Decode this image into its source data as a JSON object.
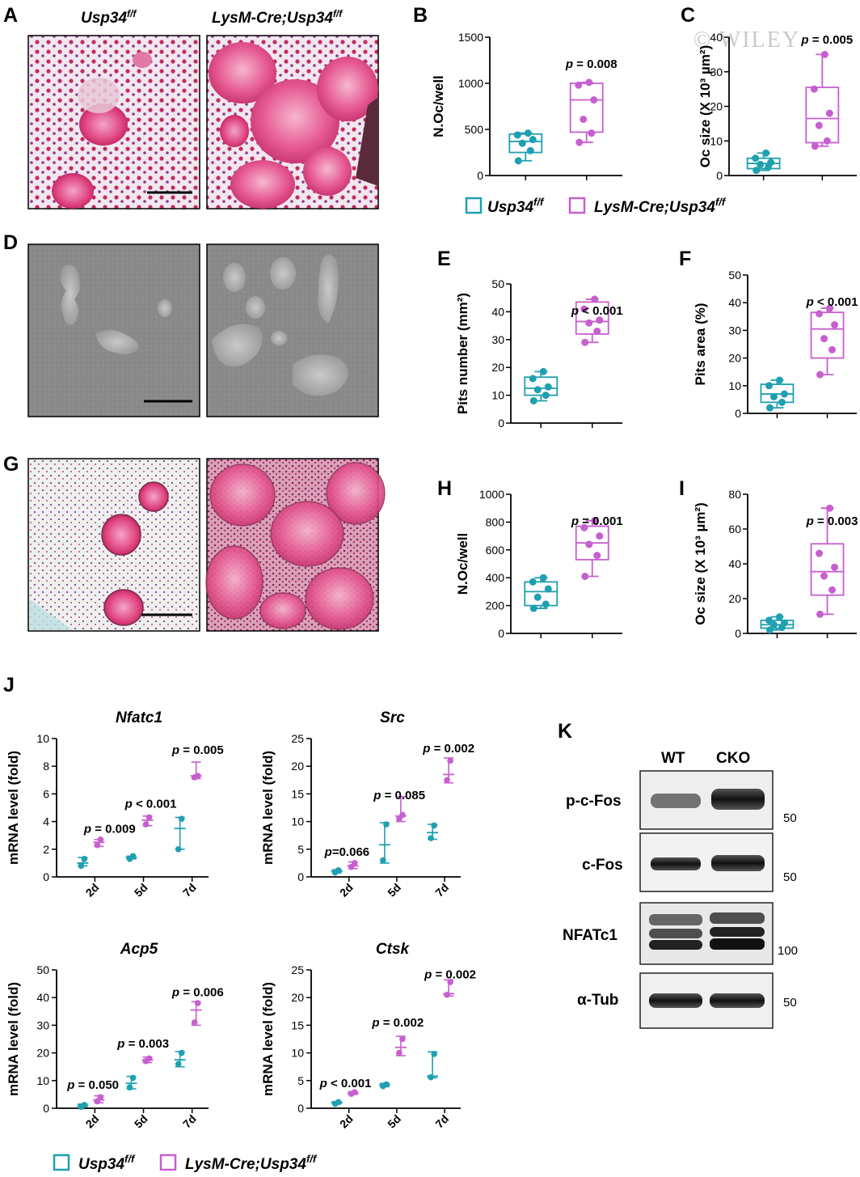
{
  "figure": {
    "panel_letters": [
      "A",
      "B",
      "C",
      "D",
      "E",
      "F",
      "G",
      "H",
      "I",
      "J",
      "K"
    ],
    "watermark": "© WILEY",
    "colors": {
      "wt": "#1fa0b0",
      "cko": "#c75fd0"
    },
    "legend_top": {
      "wt": "Usp34",
      "wt_sup": "f/f",
      "cko": "LysM-Cre;Usp34",
      "cko_sup": "f/f"
    },
    "legend_bottom": {
      "wt": "Usp34",
      "wt_sup": "f/f",
      "cko": "LysM-Cre;Usp34",
      "cko_sup": "f/f"
    },
    "image_panel_A": {
      "left_title": "Usp34",
      "left_title_sup": "f/f",
      "right_title": "LysM-Cre;Usp34",
      "right_title_sup": "f/f"
    }
  },
  "western_blot": {
    "lanes": [
      "WT",
      "CKO"
    ],
    "rows": [
      {
        "label": "p-c-Fos",
        "marker": "50"
      },
      {
        "label": "c-Fos",
        "marker": "50"
      },
      {
        "label": "NFATc1",
        "marker": "100"
      },
      {
        "label": "α-Tub",
        "marker": "50"
      }
    ]
  },
  "chart_data": [
    {
      "id": "B",
      "type": "box",
      "ylabel": "N.Oc/well",
      "ylim": [
        0,
        1500
      ],
      "yticks": [
        0,
        500,
        1000,
        1500
      ],
      "pvalue": "p = 0.008",
      "groups": [
        {
          "name": "Usp34 f/f",
          "min": 160,
          "q1": 250,
          "median": 370,
          "q3": 450,
          "max": 460,
          "points": [
            160,
            270,
            350,
            390,
            440,
            460
          ]
        },
        {
          "name": "LysM-Cre;Usp34 f/f",
          "min": 360,
          "q1": 470,
          "median": 820,
          "q3": 1000,
          "max": 1010,
          "points": [
            360,
            460,
            610,
            820,
            980,
            1010
          ]
        }
      ]
    },
    {
      "id": "C",
      "type": "box",
      "ylabel": "Oc size (X 10³ µm²)",
      "ylim": [
        0,
        40
      ],
      "yticks": [
        0,
        10,
        20,
        30,
        40
      ],
      "pvalue": "p = 0.005",
      "groups": [
        {
          "name": "Usp34 f/f",
          "min": 1.5,
          "q1": 2,
          "median": 3.5,
          "q3": 5,
          "max": 6.5,
          "points": [
            1.5,
            2.5,
            3.2,
            3.8,
            5,
            6.5
          ]
        },
        {
          "name": "LysM-Cre;Usp34 f/f",
          "min": 8.5,
          "q1": 9.5,
          "median": 16.5,
          "q3": 25.5,
          "max": 35,
          "points": [
            8.5,
            10,
            14.5,
            18,
            25,
            35
          ]
        }
      ]
    },
    {
      "id": "E",
      "type": "box",
      "ylabel": "Pits number (mm²)",
      "ylim": [
        0,
        50
      ],
      "yticks": [
        0,
        10,
        20,
        30,
        40,
        50
      ],
      "pvalue": "p < 0.001",
      "groups": [
        {
          "name": "Usp34 f/f",
          "min": 8,
          "q1": 10,
          "median": 12.5,
          "q3": 16.5,
          "max": 18.5,
          "points": [
            8,
            10,
            12,
            13,
            16,
            18.5
          ]
        },
        {
          "name": "LysM-Cre;Usp34 f/f",
          "min": 29,
          "q1": 32,
          "median": 36.5,
          "q3": 43.5,
          "max": 44.5,
          "points": [
            29,
            33,
            36,
            37,
            41,
            44.5
          ]
        }
      ]
    },
    {
      "id": "F",
      "type": "box",
      "ylabel": "Pits area (%)",
      "ylim": [
        0,
        50
      ],
      "yticks": [
        0,
        10,
        20,
        30,
        40,
        50
      ],
      "pvalue": "p < 0.001",
      "groups": [
        {
          "name": "Usp34 f/f",
          "min": 2,
          "q1": 4,
          "median": 7,
          "q3": 10.5,
          "max": 12,
          "points": [
            2,
            4,
            6,
            7,
            10,
            12
          ]
        },
        {
          "name": "LysM-Cre;Usp34 f/f",
          "min": 14,
          "q1": 20,
          "median": 30.5,
          "q3": 36.5,
          "max": 38,
          "points": [
            14,
            23,
            27,
            32,
            36,
            38
          ]
        }
      ]
    },
    {
      "id": "H",
      "type": "box",
      "ylabel": "N.Oc/well",
      "ylim": [
        0,
        1000
      ],
      "yticks": [
        0,
        200,
        400,
        600,
        800,
        1000
      ],
      "pvalue": "p = 0.001",
      "groups": [
        {
          "name": "Usp34 f/f",
          "min": 180,
          "q1": 200,
          "median": 300,
          "q3": 370,
          "max": 400,
          "points": [
            180,
            210,
            260,
            320,
            370,
            400
          ]
        },
        {
          "name": "LysM-Cre;Usp34 f/f",
          "min": 410,
          "q1": 530,
          "median": 650,
          "q3": 770,
          "max": 810,
          "points": [
            410,
            560,
            640,
            700,
            760,
            810
          ]
        }
      ]
    },
    {
      "id": "I",
      "type": "box",
      "ylabel": "Oc size (X 10³ µm²)",
      "ylim": [
        0,
        80
      ],
      "yticks": [
        0,
        20,
        40,
        60,
        80
      ],
      "pvalue": "p = 0.003",
      "groups": [
        {
          "name": "Usp34 f/f",
          "min": 2,
          "q1": 3,
          "median": 5,
          "q3": 7.5,
          "max": 9.5,
          "points": [
            2,
            3.5,
            5,
            6,
            7.5,
            9.5
          ]
        },
        {
          "name": "LysM-Cre;Usp34 f/f",
          "min": 11,
          "q1": 22,
          "median": 35.5,
          "q3": 51.5,
          "max": 72,
          "points": [
            11,
            25,
            33,
            38,
            46,
            72
          ]
        }
      ]
    },
    {
      "id": "J-Nfatc1",
      "type": "scatter",
      "title": "Nfatc1",
      "ylabel": "mRNA level (fold)",
      "ylim": [
        0,
        10
      ],
      "yticks": [
        0,
        2,
        4,
        6,
        8,
        10
      ],
      "categories": [
        "2d",
        "5d",
        "7d"
      ],
      "series": [
        {
          "name": "Usp34 f/f",
          "mean": [
            1.0,
            1.4,
            3.5
          ],
          "min": [
            0.8,
            1.3,
            2.0
          ],
          "max": [
            1.4,
            1.5,
            4.3
          ],
          "points": [
            [
              0.8,
              1.3
            ],
            [
              1.3,
              1.5
            ],
            [
              2.0,
              4.2
            ]
          ]
        },
        {
          "name": "LysM-Cre;Usp34 f/f",
          "mean": [
            2.5,
            4.1,
            7.3
          ],
          "min": [
            2.2,
            3.7,
            7.1
          ],
          "max": [
            2.7,
            4.4,
            8.3
          ],
          "points": [
            [
              2.3,
              2.7
            ],
            [
              3.8,
              4.3
            ],
            [
              7.2,
              7.3
            ]
          ]
        }
      ],
      "pvalues": [
        "p = 0.009",
        "p < 0.001",
        "p = 0.005"
      ]
    },
    {
      "id": "J-Src",
      "type": "scatter",
      "title": "Src",
      "ylabel": "mRNA level (fold)",
      "ylim": [
        0,
        25
      ],
      "yticks": [
        0,
        5,
        10,
        15,
        20,
        25
      ],
      "categories": [
        "2d",
        "5d",
        "7d"
      ],
      "series": [
        {
          "name": "Usp34 f/f",
          "mean": [
            1.0,
            5.8,
            8.0
          ],
          "min": [
            0.7,
            2.5,
            6.8
          ],
          "max": [
            1.3,
            9.8,
            9.5
          ],
          "points": [
            [
              0.8,
              1.2
            ],
            [
              3.0,
              9.5
            ],
            [
              7.0,
              9.3
            ]
          ]
        },
        {
          "name": "LysM-Cre;Usp34 f/f",
          "mean": [
            2.0,
            11.0,
            18.5
          ],
          "min": [
            1.5,
            10.0,
            17.0
          ],
          "max": [
            2.7,
            14.5,
            21.5
          ],
          "points": [
            [
              1.8,
              2.5
            ],
            [
              10.5,
              11.2
            ],
            [
              17.5,
              21.0
            ]
          ]
        }
      ],
      "pvalues": [
        "p=0.066",
        "p = 0.085",
        "p = 0.002"
      ]
    },
    {
      "id": "J-Acp5",
      "type": "scatter",
      "title": "Acp5",
      "ylabel": "mRNA level (fold)",
      "ylim": [
        0,
        50
      ],
      "yticks": [
        0,
        10,
        20,
        30,
        40,
        50
      ],
      "categories": [
        "2d",
        "5d",
        "7d"
      ],
      "series": [
        {
          "name": "Usp34 f/f",
          "mean": [
            1.0,
            9.0,
            17.5
          ],
          "min": [
            0.5,
            7.0,
            15.0
          ],
          "max": [
            1.5,
            11.5,
            20.5
          ],
          "points": [
            [
              0.5,
              1.2
            ],
            [
              7.5,
              11.0
            ],
            [
              16.0,
              20.0
            ]
          ]
        },
        {
          "name": "LysM-Cre;Usp34 f/f",
          "mean": [
            3.0,
            17.5,
            35.5
          ],
          "min": [
            2.0,
            16.5,
            30.0
          ],
          "max": [
            4.5,
            18.5,
            38.5
          ],
          "points": [
            [
              2.5,
              4.0
            ],
            [
              17.0,
              18.0
            ],
            [
              31.0,
              38.0
            ]
          ]
        }
      ],
      "pvalues": [
        "p = 0.050",
        "p = 0.003",
        "p = 0.006"
      ]
    },
    {
      "id": "J-Ctsk",
      "type": "scatter",
      "title": "Ctsk",
      "ylabel": "mRNA level (fold)",
      "ylim": [
        0,
        25
      ],
      "yticks": [
        0,
        5,
        10,
        15,
        20,
        25
      ],
      "categories": [
        "2d",
        "5d",
        "7d"
      ],
      "series": [
        {
          "name": "Usp34 f/f",
          "mean": [
            1.0,
            4.2,
            5.8
          ],
          "min": [
            0.8,
            3.9,
            5.5
          ],
          "max": [
            1.2,
            4.5,
            10.2
          ],
          "points": [
            [
              0.8,
              1.1
            ],
            [
              4.0,
              4.3
            ],
            [
              5.6,
              9.8
            ]
          ]
        },
        {
          "name": "LysM-Cre;Usp34 f/f",
          "mean": [
            2.7,
            11.0,
            20.7
          ],
          "min": [
            2.5,
            9.5,
            20.3
          ],
          "max": [
            3.0,
            13.0,
            23.2
          ],
          "points": [
            [
              2.6,
              2.9
            ],
            [
              10.0,
              12.5
            ],
            [
              20.5,
              22.8
            ]
          ]
        }
      ],
      "pvalues": [
        "p < 0.001",
        "p = 0.002",
        "p = 0.002"
      ]
    }
  ]
}
